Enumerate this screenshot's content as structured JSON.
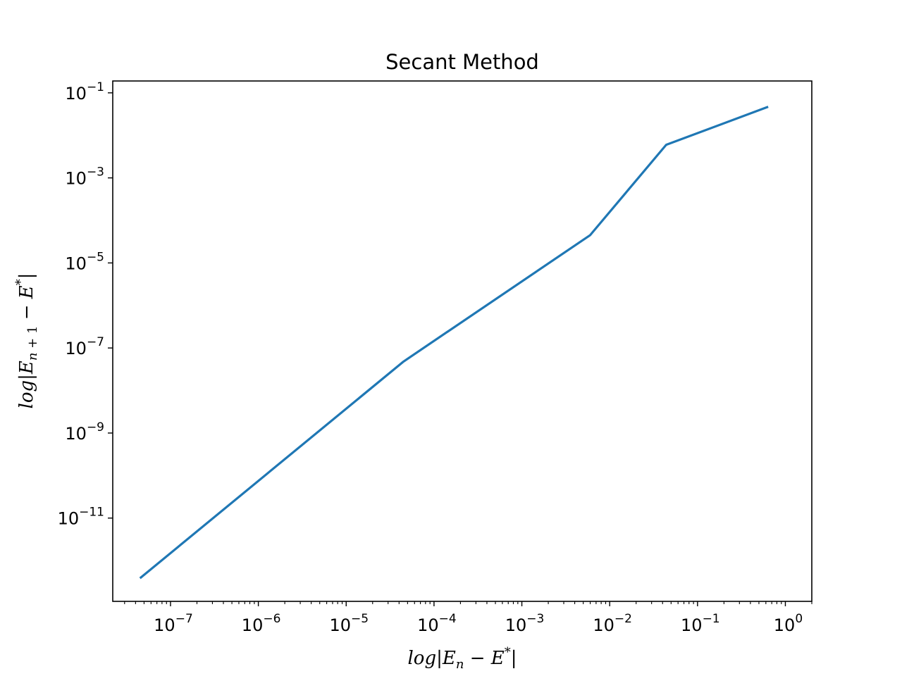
{
  "chart_data": {
    "type": "line",
    "title": "Secant Method",
    "xlabel": "log|E_n - E*|",
    "ylabel": "log|E_{n+1} - E*|",
    "xscale": "log",
    "yscale": "log",
    "xlim": [
      2.2e-08,
      2.0
    ],
    "ylim": [
      1.1e-13,
      0.19
    ],
    "x_ticks": [
      1e-07,
      1e-06,
      1e-05,
      0.0001,
      0.001,
      0.01,
      0.1,
      1.0
    ],
    "x_tick_labels": [
      {
        "base": "10",
        "exp": "−7"
      },
      {
        "base": "10",
        "exp": "−6"
      },
      {
        "base": "10",
        "exp": "−5"
      },
      {
        "base": "10",
        "exp": "−4"
      },
      {
        "base": "10",
        "exp": "−3"
      },
      {
        "base": "10",
        "exp": "−2"
      },
      {
        "base": "10",
        "exp": "−1"
      },
      {
        "base": "10",
        "exp": "0"
      }
    ],
    "y_ticks": [
      1e-11,
      1e-09,
      1e-07,
      1e-05,
      0.001,
      0.1
    ],
    "y_tick_labels": [
      {
        "base": "10",
        "exp": "−11"
      },
      {
        "base": "10",
        "exp": "−9"
      },
      {
        "base": "10",
        "exp": "−7"
      },
      {
        "base": "10",
        "exp": "−5"
      },
      {
        "base": "10",
        "exp": "−3"
      },
      {
        "base": "10",
        "exp": "−1"
      }
    ],
    "grid": false,
    "series": [
      {
        "color": "#1f77b4",
        "x": [
          4.6e-08,
          4.5e-05,
          0.006,
          0.044,
          0.62
        ],
        "y": [
          4e-13,
          4.8e-08,
          4.5e-05,
          0.006,
          0.046
        ]
      }
    ]
  }
}
